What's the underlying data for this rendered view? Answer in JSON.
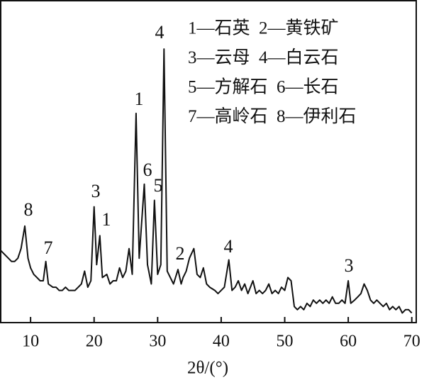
{
  "chart_data": {
    "type": "line",
    "x_label": "2θ/(°)",
    "legend_lines": [
      "1—石英  2—黄铁矿",
      "3—云母  4—白云石",
      "5—方解石  6—长石",
      "7—高岭石  8—伊利石"
    ],
    "annotations": [
      "8",
      "7",
      "3",
      "1",
      "1",
      "6",
      "5",
      "4",
      "2",
      "4",
      "3"
    ],
    "xlim": [
      5.3,
      70.7
    ],
    "xticks": [
      10,
      20,
      30,
      40,
      50,
      60,
      70
    ],
    "ylim": [
      0,
      100
    ],
    "color": "#111111",
    "x": [
      5,
      5.5,
      6,
      6.5,
      7,
      7.5,
      8,
      8.5,
      9.1,
      9.6,
      10,
      10.5,
      11,
      11.5,
      12,
      12.4,
      12.8,
      13.5,
      14,
      14.5,
      15,
      15.5,
      16,
      16.5,
      17,
      17.5,
      18,
      18.5,
      19,
      19.5,
      20,
      20.4,
      20.9,
      21.3,
      22,
      22.5,
      23,
      23.5,
      24,
      24.5,
      25,
      25.5,
      26,
      26.6,
      27.1,
      27.9,
      28.4,
      29,
      29.5,
      30,
      30.5,
      31,
      31.5,
      32,
      32.5,
      33.2,
      33.7,
      34,
      34.5,
      35,
      35.7,
      36.2,
      36.7,
      37.2,
      37.7,
      38.2,
      39,
      39.5,
      40,
      40.5,
      41.2,
      41.7,
      42.2,
      42.7,
      43.2,
      43.7,
      44.2,
      45,
      45.5,
      46,
      46.5,
      47,
      47.5,
      48,
      48.5,
      49,
      49.5,
      50,
      50.5,
      51,
      51.5,
      52,
      52.5,
      53,
      53.5,
      54,
      54.5,
      55,
      55.5,
      56,
      56.5,
      57,
      57.5,
      58,
      58.5,
      59,
      59.5,
      60,
      60.4,
      61,
      61.5,
      62,
      62.5,
      63,
      63.5,
      64,
      64.5,
      65,
      65.5,
      66,
      66.5,
      67,
      67.5,
      68,
      68.5,
      69,
      69.5,
      70
    ],
    "values": [
      23,
      22,
      21,
      20,
      19,
      19,
      20,
      23,
      30,
      20,
      17,
      15,
      14,
      13,
      13,
      19,
      12,
      11,
      11,
      10,
      10,
      11,
      10,
      10,
      10,
      11,
      12,
      16,
      11,
      13,
      36,
      18,
      27,
      14,
      15,
      12,
      13,
      13,
      17,
      14,
      16,
      23,
      15,
      65,
      20,
      43,
      18,
      12,
      38,
      15,
      18,
      85,
      16,
      14,
      12,
      16.5,
      12,
      14,
      16,
      20,
      23,
      15,
      14,
      17,
      12,
      11,
      10,
      9,
      10,
      11,
      19.5,
      10,
      11,
      13,
      10,
      12,
      9,
      13,
      9,
      10,
      9,
      10,
      12,
      9,
      10,
      9,
      11,
      10,
      14,
      13,
      5,
      4,
      5,
      4,
      6,
      5,
      7,
      6,
      7,
      6,
      7,
      6,
      8,
      6,
      6,
      7,
      6,
      13,
      6,
      7,
      8,
      9,
      12,
      10,
      7,
      6,
      7,
      6,
      5,
      6,
      4,
      5,
      4,
      5,
      3,
      4,
      4,
      3
    ]
  }
}
